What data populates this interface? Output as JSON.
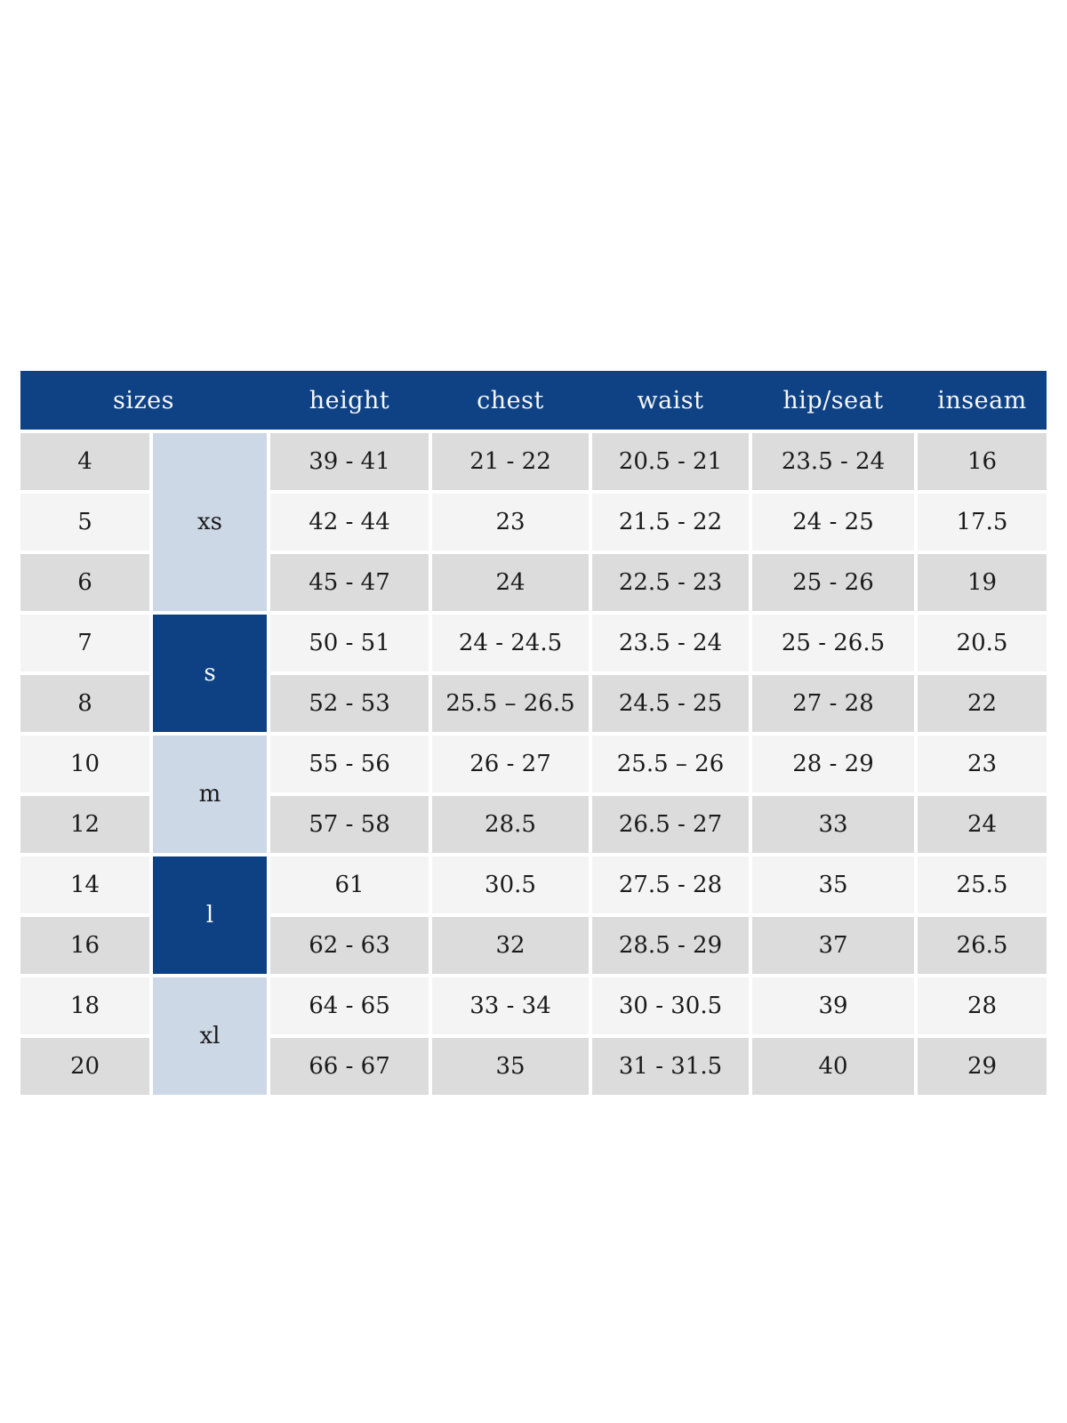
{
  "colors": {
    "header_blue": "#0e4285",
    "group_dark_blue": "#0d4184",
    "group_light_blue": "#ccd8e6",
    "row_dark": "#dcdcdc",
    "row_light": "#f4f4f4",
    "text_dark": "#1b1b1b",
    "header_text": "#f7f7f4",
    "page_bg": "#ffffff"
  },
  "chart_data": {
    "type": "table",
    "title": "",
    "header": {
      "sizes": "sizes",
      "height": "height",
      "chest": "chest",
      "waist": "waist",
      "hip_seat": "hip/seat",
      "inseam": "inseam"
    },
    "size_groups": [
      {
        "label": "xs",
        "rows": 3,
        "style": "light"
      },
      {
        "label": "s",
        "rows": 2,
        "style": "dark"
      },
      {
        "label": "m",
        "rows": 2,
        "style": "light"
      },
      {
        "label": "l",
        "rows": 2,
        "style": "dark"
      },
      {
        "label": "xl",
        "rows": 2,
        "style": "light"
      }
    ],
    "rows": [
      {
        "size": "4",
        "group": "xs",
        "height": "39 - 41",
        "chest": "21 - 22",
        "waist": "20.5 - 21",
        "hip_seat": "23.5 - 24",
        "inseam": "16"
      },
      {
        "size": "5",
        "group": "xs",
        "height": "42 - 44",
        "chest": "23",
        "waist": "21.5 - 22",
        "hip_seat": "24 - 25",
        "inseam": "17.5"
      },
      {
        "size": "6",
        "group": "xs",
        "height": "45 - 47",
        "chest": "24",
        "waist": "22.5 - 23",
        "hip_seat": "25 - 26",
        "inseam": "19"
      },
      {
        "size": "7",
        "group": "s",
        "height": "50 - 51",
        "chest": "24 - 24.5",
        "waist": "23.5 - 24",
        "hip_seat": "25 - 26.5",
        "inseam": "20.5"
      },
      {
        "size": "8",
        "group": "s",
        "height": "52 - 53",
        "chest": "25.5 – 26.5",
        "waist": "24.5 - 25",
        "hip_seat": "27 - 28",
        "inseam": "22"
      },
      {
        "size": "10",
        "group": "m",
        "height": "55 - 56",
        "chest": "26 - 27",
        "waist": "25.5 – 26",
        "hip_seat": "28 - 29",
        "inseam": "23"
      },
      {
        "size": "12",
        "group": "m",
        "height": "57 - 58",
        "chest": "28.5",
        "waist": "26.5 - 27",
        "hip_seat": "33",
        "inseam": "24"
      },
      {
        "size": "14",
        "group": "l",
        "height": "61",
        "chest": "30.5",
        "waist": "27.5 - 28",
        "hip_seat": "35",
        "inseam": "25.5"
      },
      {
        "size": "16",
        "group": "l",
        "height": "62 - 63",
        "chest": "32",
        "waist": "28.5 - 29",
        "hip_seat": "37",
        "inseam": "26.5"
      },
      {
        "size": "18",
        "group": "xl",
        "height": "64 - 65",
        "chest": "33 - 34",
        "waist": "30 - 30.5",
        "hip_seat": "39",
        "inseam": "28"
      },
      {
        "size": "20",
        "group": "xl",
        "height": "66 - 67",
        "chest": "35",
        "waist": "31 - 31.5",
        "hip_seat": "40",
        "inseam": "29"
      }
    ]
  }
}
